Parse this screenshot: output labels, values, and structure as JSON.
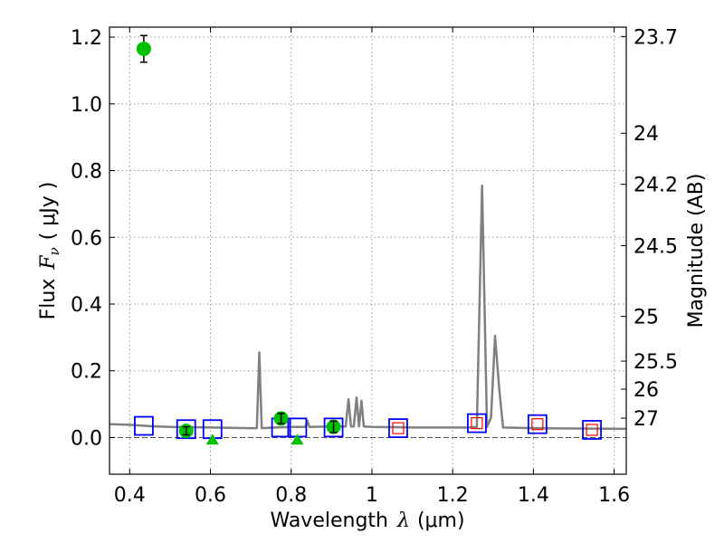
{
  "chart_data": {
    "type": "scatter",
    "xlabel_prefix": "Wavelength",
    "xlabel_symbol": "λ",
    "xlabel_unit": "(μm)",
    "ylabel_prefix": "Flux",
    "ylabel_symbol": "F",
    "ylabel_subscript": "ν",
    "ylabel_unit": "( μJy )",
    "y2label": "Magnitude (AB)",
    "xlim": [
      0.35,
      1.63
    ],
    "ylim": [
      -0.11,
      1.23
    ],
    "grid": true,
    "x_ticks": [
      {
        "value": 0.4,
        "label": "0.4"
      },
      {
        "value": 0.6,
        "label": "0.6"
      },
      {
        "value": 0.8,
        "label": "0.8"
      },
      {
        "value": 1.0,
        "label": "1"
      },
      {
        "value": 1.2,
        "label": "1.2"
      },
      {
        "value": 1.4,
        "label": "1.4"
      },
      {
        "value": 1.6,
        "label": "1.6"
      }
    ],
    "y_ticks": [
      {
        "value": 0.0,
        "label": "0.0"
      },
      {
        "value": 0.2,
        "label": "0.2"
      },
      {
        "value": 0.4,
        "label": "0.4"
      },
      {
        "value": 0.6,
        "label": "0.6"
      },
      {
        "value": 0.8,
        "label": "0.8"
      },
      {
        "value": 1.0,
        "label": "1.0"
      },
      {
        "value": 1.2,
        "label": "1.2"
      }
    ],
    "magnitude_ticks": [
      {
        "flux": 1.202,
        "label": "23.7"
      },
      {
        "flux": 0.912,
        "label": "24"
      },
      {
        "flux": 0.759,
        "label": "24.2"
      },
      {
        "flux": 0.575,
        "label": "24.5"
      },
      {
        "flux": 0.363,
        "label": "25"
      },
      {
        "flux": 0.229,
        "label": "25.5"
      },
      {
        "flux": 0.145,
        "label": "26"
      },
      {
        "flux": 0.058,
        "label": "27"
      }
    ],
    "model_spectrum": {
      "color": "#808080",
      "points": [
        [
          0.35,
          0.04
        ],
        [
          0.4,
          0.038
        ],
        [
          0.45,
          0.034
        ],
        [
          0.5,
          0.032
        ],
        [
          0.55,
          0.031
        ],
        [
          0.6,
          0.03
        ],
        [
          0.65,
          0.029
        ],
        [
          0.7,
          0.028
        ],
        [
          0.715,
          0.028
        ],
        [
          0.721,
          0.255
        ],
        [
          0.727,
          0.028
        ],
        [
          0.76,
          0.03
        ],
        [
          0.8,
          0.032
        ],
        [
          0.835,
          0.032
        ],
        [
          0.84,
          0.05
        ],
        [
          0.845,
          0.032
        ],
        [
          0.9,
          0.033
        ],
        [
          0.935,
          0.033
        ],
        [
          0.942,
          0.115
        ],
        [
          0.948,
          0.033
        ],
        [
          0.955,
          0.033
        ],
        [
          0.962,
          0.12
        ],
        [
          0.968,
          0.033
        ],
        [
          0.974,
          0.11
        ],
        [
          0.98,
          0.033
        ],
        [
          1.0,
          0.032
        ],
        [
          1.05,
          0.031
        ],
        [
          1.1,
          0.03
        ],
        [
          1.15,
          0.03
        ],
        [
          1.2,
          0.03
        ],
        [
          1.24,
          0.03
        ],
        [
          1.26,
          0.032
        ],
        [
          1.273,
          0.755
        ],
        [
          1.285,
          0.032
        ],
        [
          1.295,
          0.06
        ],
        [
          1.305,
          0.305
        ],
        [
          1.315,
          0.15
        ],
        [
          1.325,
          0.03
        ],
        [
          1.4,
          0.028
        ],
        [
          1.5,
          0.027
        ],
        [
          1.63,
          0.026
        ]
      ]
    },
    "series": [
      {
        "marker": "open-square",
        "color": "#0000ff",
        "x": [
          0.435,
          0.54,
          0.605,
          0.775,
          0.815,
          0.905,
          1.065,
          1.26,
          1.41,
          1.545
        ],
        "y": [
          0.035,
          0.025,
          0.025,
          0.03,
          0.03,
          0.03,
          0.028,
          0.043,
          0.04,
          0.023
        ]
      },
      {
        "marker": "open-square-small",
        "color": "#ff0000",
        "x": [
          1.065,
          1.26,
          1.41,
          1.545
        ],
        "y": [
          0.028,
          0.043,
          0.04,
          0.023
        ]
      },
      {
        "marker": "filled-circle",
        "color": "#00c000",
        "x": [
          0.435,
          0.54,
          0.775,
          0.905
        ],
        "y": [
          1.165,
          0.02,
          0.057,
          0.032
        ],
        "yerr": [
          0.04,
          0.012,
          0.015,
          0.017
        ]
      },
      {
        "marker": "filled-triangle",
        "color": "#00c000",
        "x": [
          0.605,
          0.815
        ],
        "y": [
          -0.005,
          -0.005
        ]
      }
    ]
  }
}
